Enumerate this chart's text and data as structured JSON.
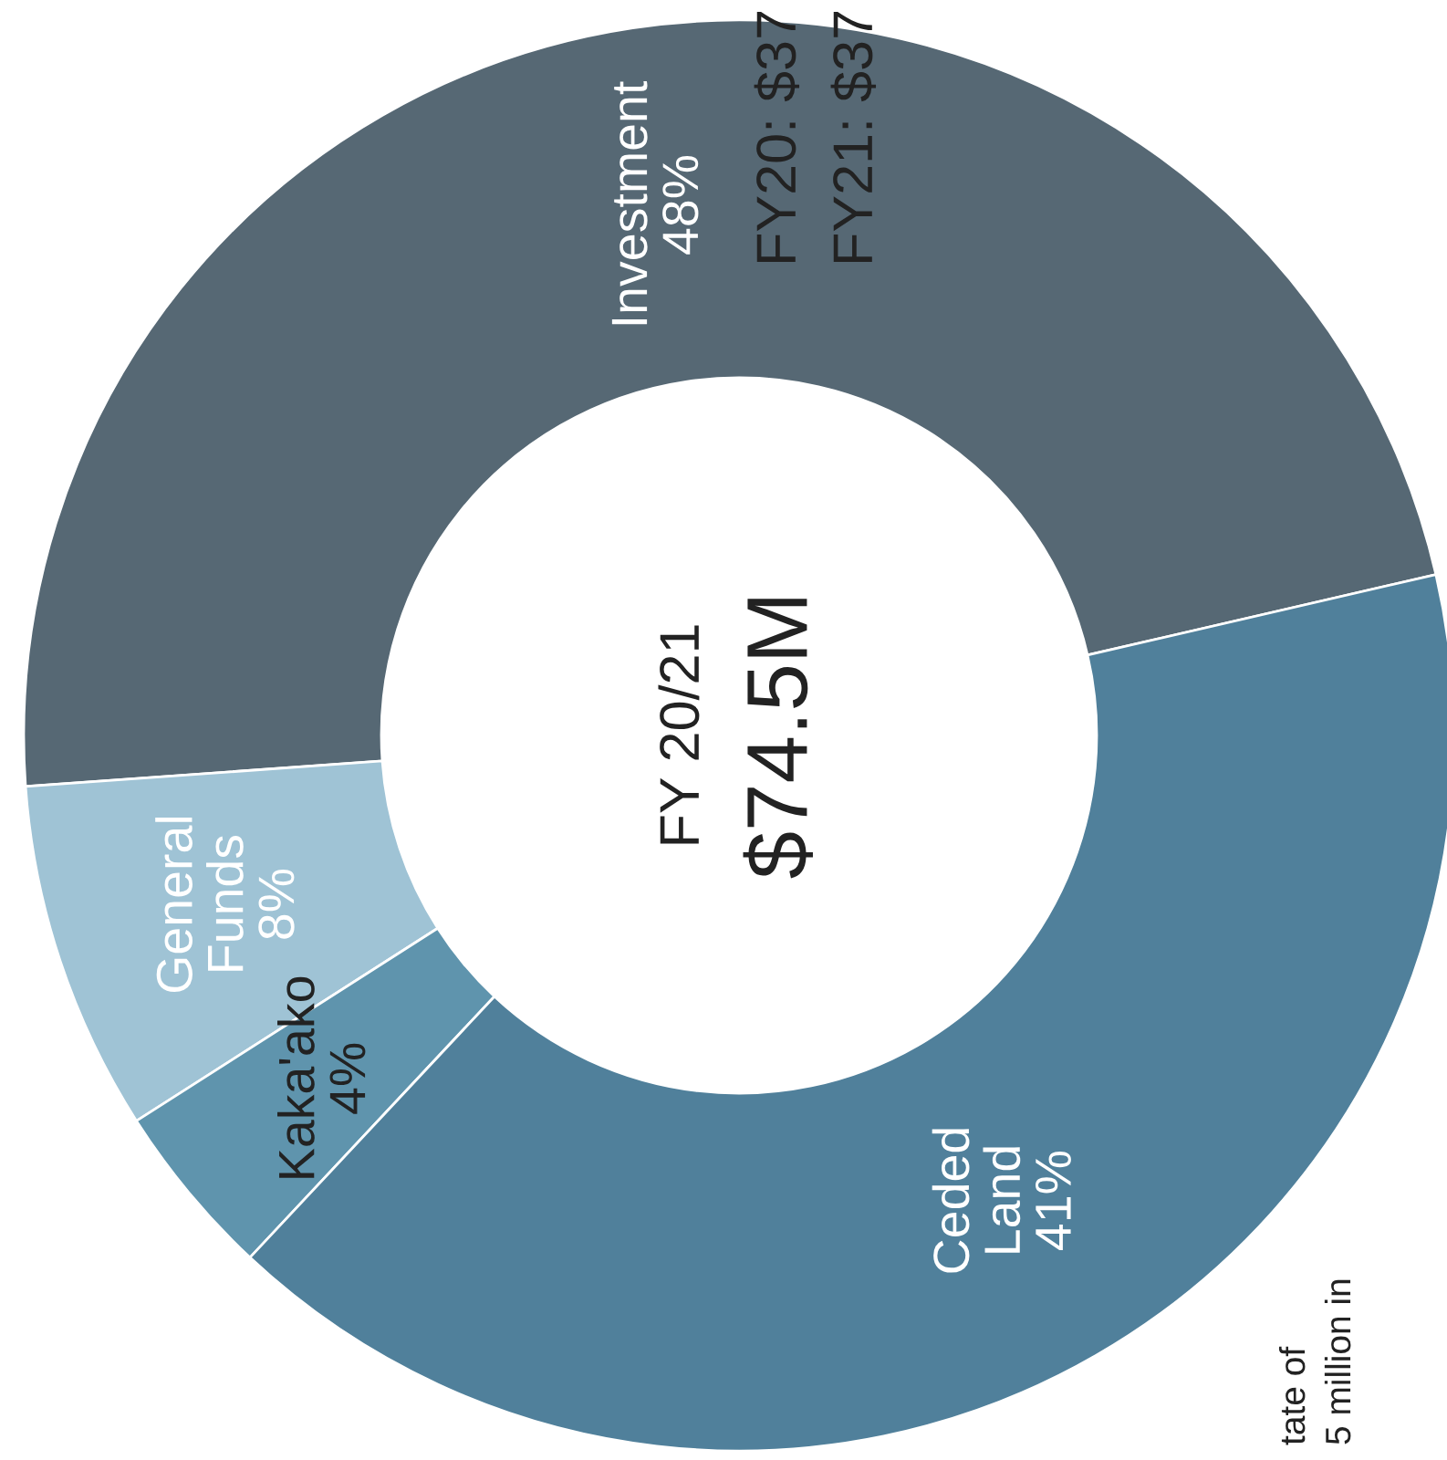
{
  "chart_data": {
    "type": "donut",
    "title": "FY 20/21",
    "subtitle": "$74.5M",
    "categories": [
      "Investment",
      "General\nFunds",
      "Kaka'ako",
      "Ceded\nLand"
    ],
    "values": [
      48,
      8,
      4,
      41
    ],
    "colors": [
      "#566874",
      "#9fc3d5",
      "#5f94ad",
      "#50809b"
    ],
    "value_labels": [
      "48%",
      "8%",
      "4%",
      "41%"
    ],
    "annotations": [
      "FY20: $37",
      "FY21: $37",
      "tate of",
      "5 million in"
    ]
  }
}
